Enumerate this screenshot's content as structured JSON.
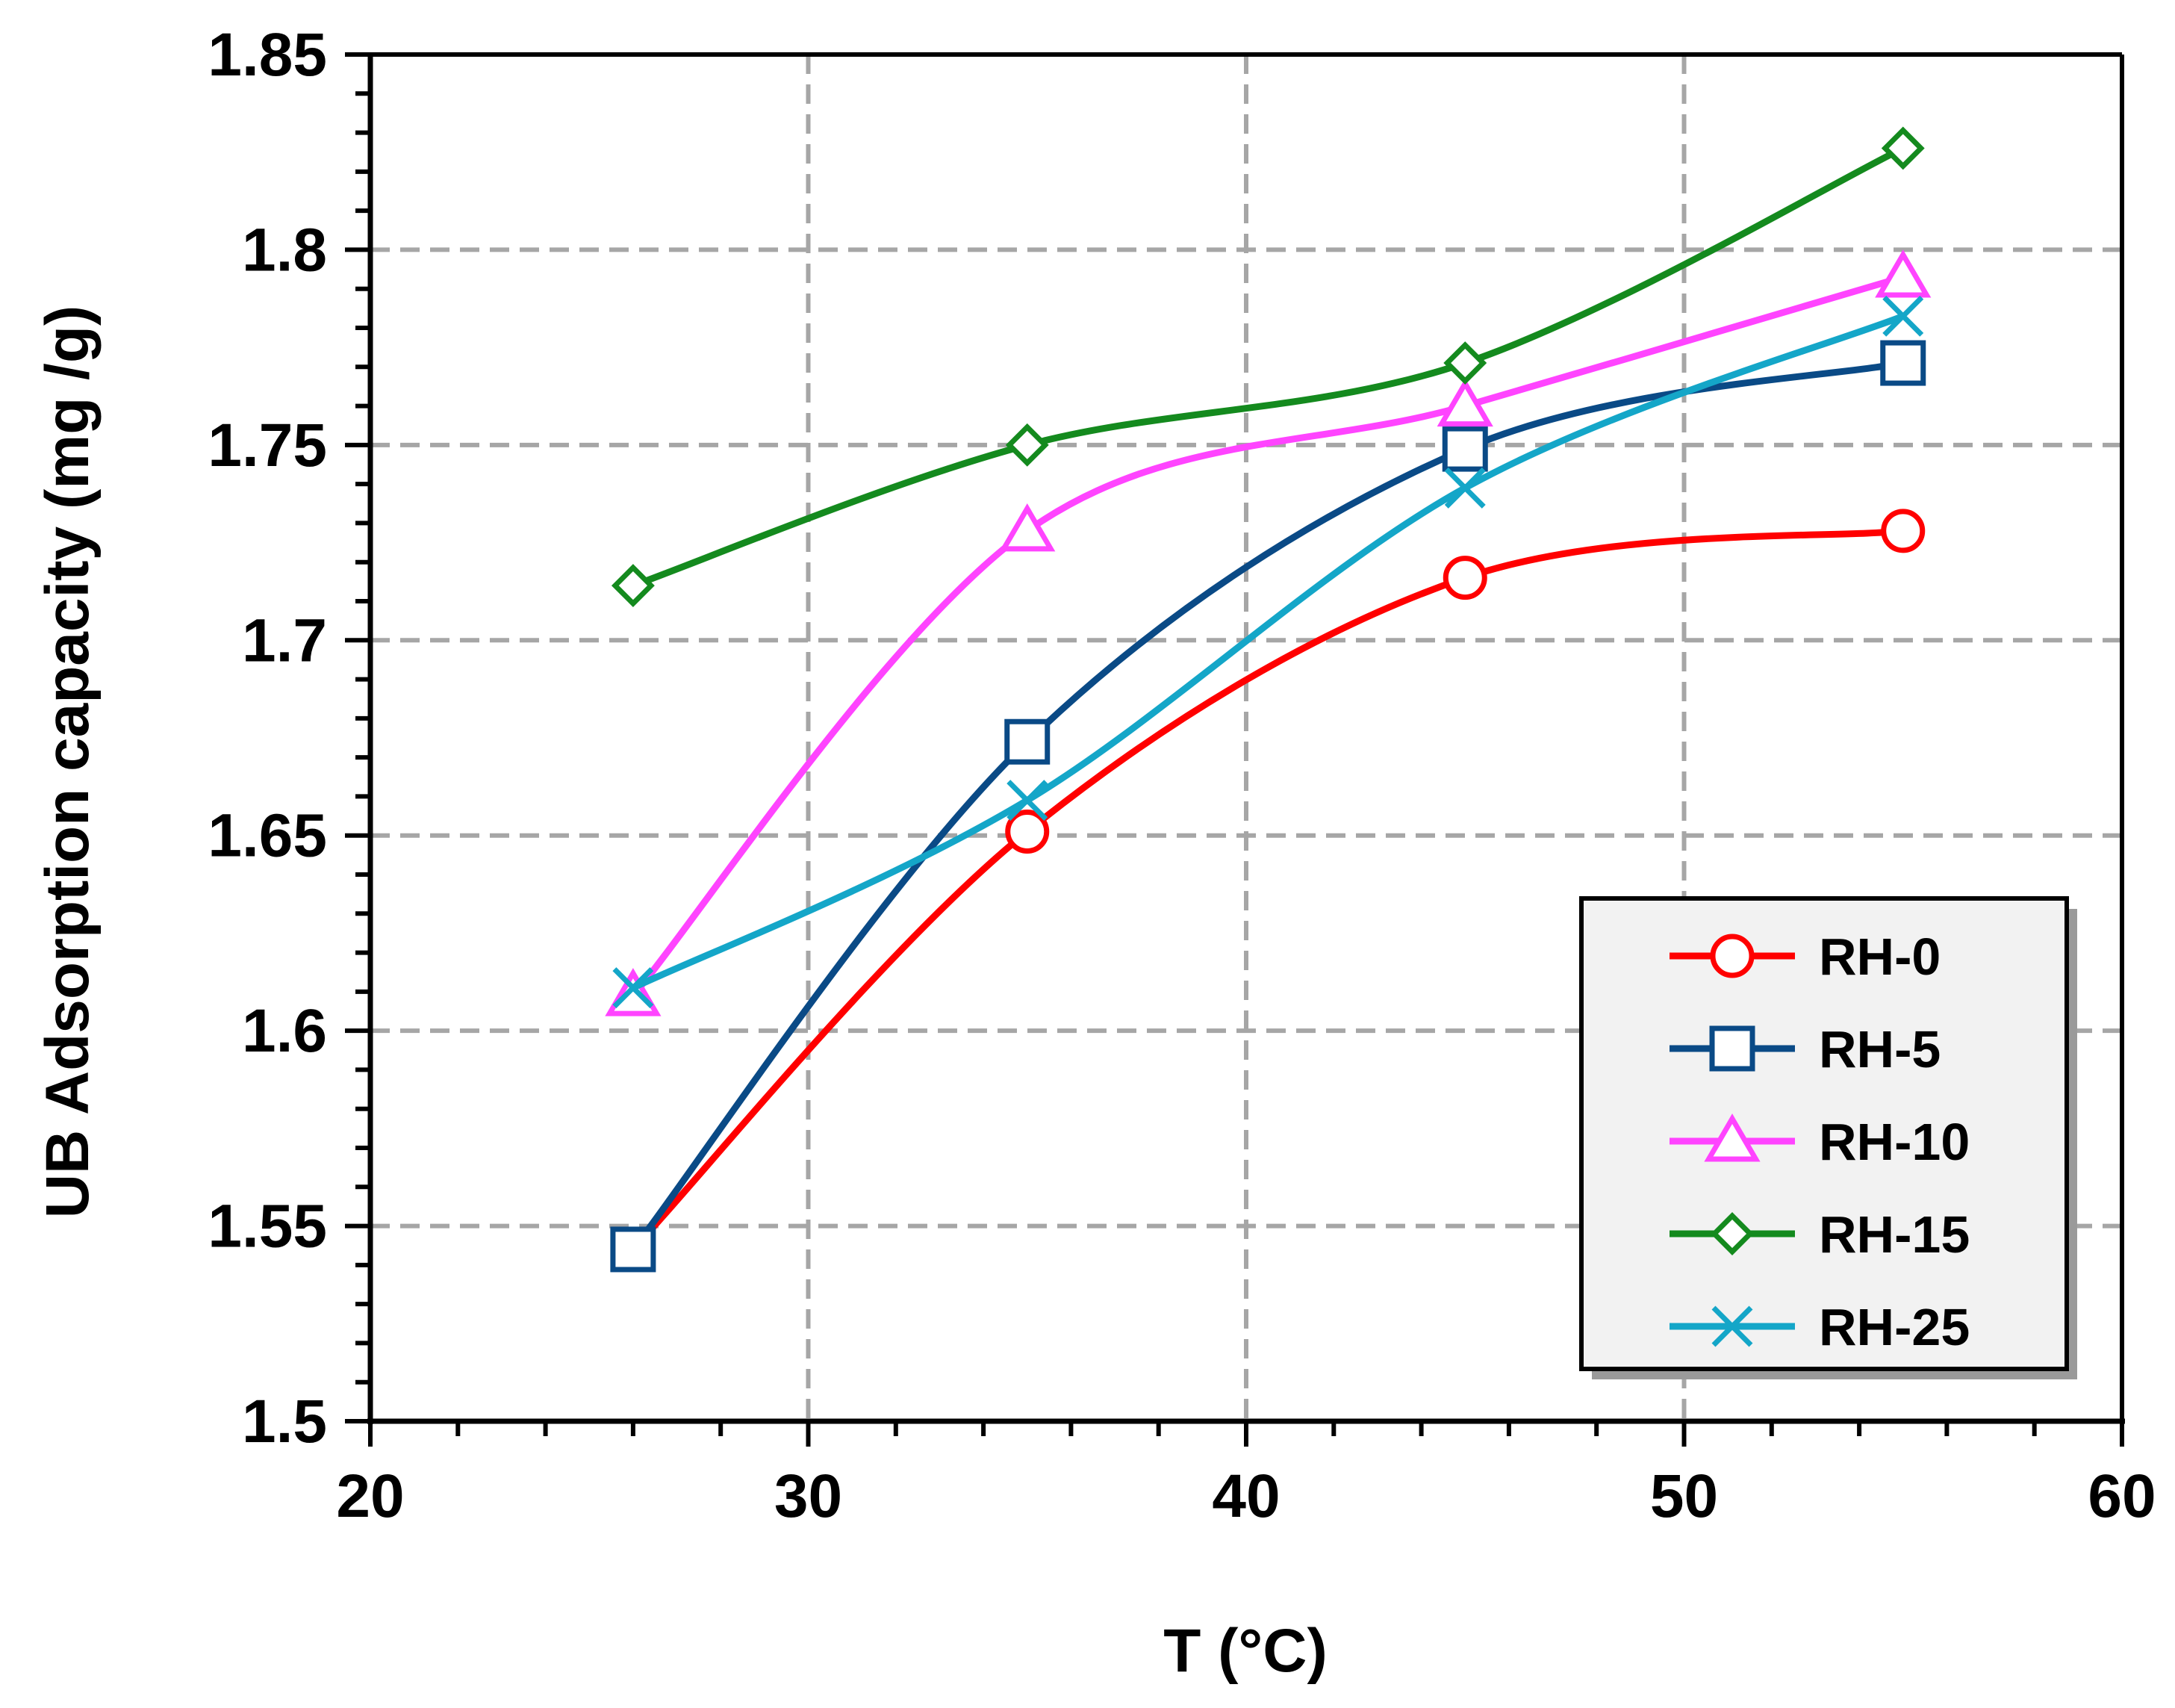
{
  "chart_data": {
    "type": "line",
    "title": "",
    "xlabel": "T (°C)",
    "ylabel": "UB  Adsorption capacity  (mg /g)",
    "xlim": [
      20,
      60
    ],
    "ylim": [
      1.5,
      1.85
    ],
    "x_ticks": [
      "20",
      "30",
      "40",
      "50",
      "60"
    ],
    "y_ticks": [
      "1.5",
      "1.55",
      "1.6",
      "1.65",
      "1.7",
      "1.75",
      "1.8",
      "1.85"
    ],
    "grid": true,
    "legend_position": "bottom-right",
    "x": [
      26,
      35,
      45,
      55
    ],
    "series": [
      {
        "name": "RH-0",
        "marker": "circle",
        "color": "#ff0000",
        "values": [
          1.544,
          1.651,
          1.716,
          1.728
        ]
      },
      {
        "name": "RH-5",
        "marker": "square",
        "color": "#0a4a86",
        "values": [
          1.544,
          1.674,
          1.749,
          1.771
        ]
      },
      {
        "name": "RH-10",
        "marker": "triangle",
        "color": "#ff44ff",
        "values": [
          1.609,
          1.728,
          1.76,
          1.793
        ]
      },
      {
        "name": "RH-15",
        "marker": "diamond",
        "color": "#148a1e",
        "values": [
          1.714,
          1.75,
          1.771,
          1.826
        ]
      },
      {
        "name": "RH-25",
        "marker": "x",
        "color": "#14a6c8",
        "values": [
          1.611,
          1.659,
          1.739,
          1.783
        ]
      }
    ]
  }
}
